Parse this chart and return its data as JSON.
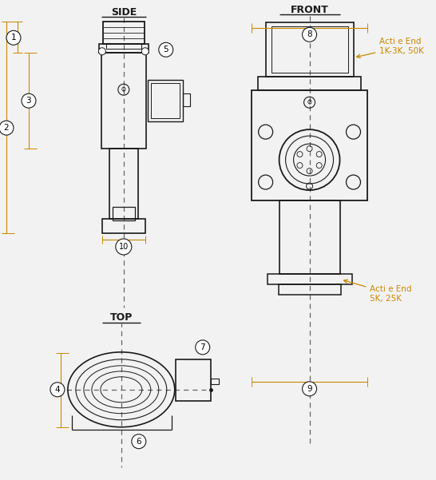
{
  "bg_color": "#f2f2f2",
  "line_color": "#1a1a1a",
  "dim_color": "#cc8800",
  "dashed_color": "#666666",
  "title_side": "SIDE",
  "title_front": "FRONT",
  "title_top": "TOP",
  "note_top": "Acti e End\n1K-3K, 50K",
  "note_bottom": "Acti e End\n5K, 25K"
}
